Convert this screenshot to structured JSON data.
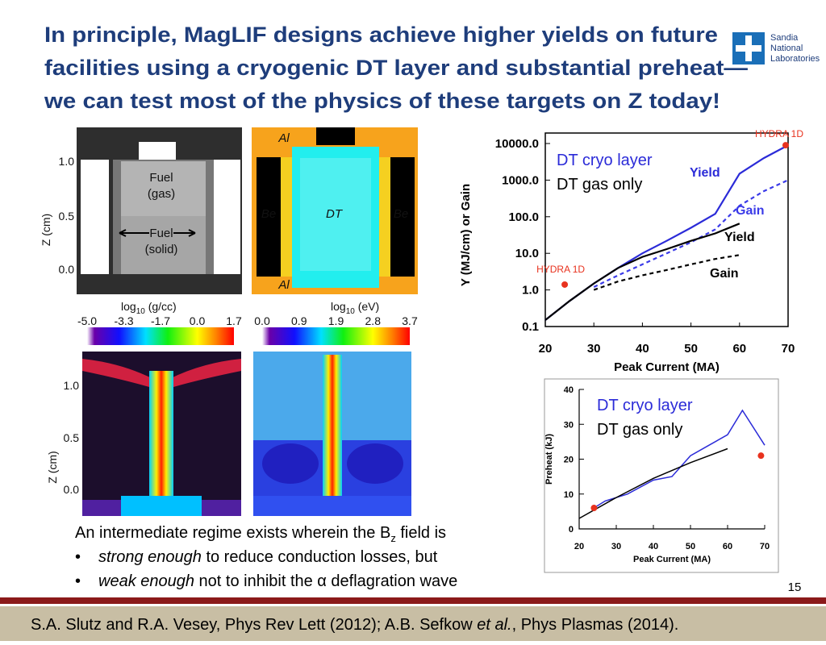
{
  "title": [
    "In principle, MagLIF designs achieve higher yields on future",
    "facilities using a cryogenic DT layer and substantial preheat—",
    "we can test most of the physics of these targets on Z today!"
  ],
  "logo": [
    "Sandia",
    "National",
    "Laboratories"
  ],
  "simulation": {
    "rows": [
      {
        "z_label": "Z (cm)",
        "z_ticks": [
          "1.0",
          "0.5",
          "0.0"
        ]
      },
      {
        "z_label": "Z (cm)",
        "z_ticks": [
          "1.0",
          "0.5",
          "0.0"
        ]
      }
    ],
    "density_labels": [
      "Fuel",
      "(gas)",
      "Fuel",
      "(solid)"
    ],
    "material_labels": [
      "Al",
      "Be",
      "DT",
      "Be",
      "Al"
    ],
    "scales": [
      {
        "title": [
          "log",
          "10",
          " (g/cc)"
        ],
        "ticks": [
          "-5.0",
          "-3.3",
          "-1.7",
          "0.0",
          "1.7"
        ]
      },
      {
        "title": [
          "log",
          "10",
          " (eV)"
        ],
        "ticks": [
          "0.0",
          "0.9",
          "1.9",
          "2.8",
          "3.7"
        ]
      }
    ]
  },
  "text": {
    "intro": [
      "An intermediate regime exists wherein the B",
      "z",
      " field is"
    ],
    "bullets": [
      {
        "emphasis": "strong enough",
        "rest": " to reduce conduction losses, but"
      },
      {
        "emphasis": "weak enough",
        "rest": " not to inhibit the α deflagration wave"
      }
    ]
  },
  "page_number": "15",
  "footer": [
    "S.A. Slutz and R.A. Vesey, Phys Rev Lett (2012); A.B. Sefkow ",
    "et al.",
    ", Phys Plasmas (2014)."
  ],
  "chart_data": [
    {
      "type": "line",
      "y_scale": "log",
      "xlabel": "Peak Current (MA)",
      "ylabel": "Y (MJ/cm) or Gain",
      "xlim": [
        20,
        70
      ],
      "xticks": [
        20,
        30,
        40,
        50,
        60,
        70
      ],
      "ylim": [
        0.1,
        10000
      ],
      "yticks": [
        0.1,
        {
          "value": 1,
          "label": "1.0"
        },
        {
          "value": 10,
          "label": "10.0"
        },
        {
          "value": 100,
          "label": "100.0"
        },
        {
          "value": 1000,
          "label": "1000.0"
        },
        {
          "value": 10000,
          "label": "10000.0"
        }
      ],
      "legend": [
        {
          "label": "DT cryo layer",
          "color": "#2b2bd8"
        },
        {
          "label": "DT gas only",
          "color": "#000000"
        }
      ],
      "x": [
        20,
        25,
        30,
        35,
        40,
        45,
        50,
        55,
        60,
        65,
        70
      ],
      "series": [
        {
          "name": "Yield",
          "color": "#2b2bd8",
          "dash": false,
          "values": [
            0.15,
            0.5,
            1.5,
            4,
            10,
            22,
            50,
            120,
            1500,
            4000,
            9000
          ]
        },
        {
          "name": "Gain",
          "color": "#3a3ae8",
          "dash": true,
          "values": [
            null,
            null,
            1.2,
            2.5,
            5,
            10,
            20,
            45,
            200,
            500,
            1000
          ]
        },
        {
          "name": "Yield",
          "color": "#000000",
          "dash": false,
          "values": [
            0.15,
            0.5,
            1.5,
            4,
            8,
            13,
            22,
            35,
            65,
            null,
            null
          ]
        },
        {
          "name": "Gain",
          "color": "#000000",
          "dash": true,
          "values": [
            null,
            null,
            1,
            1.7,
            2.5,
            3.5,
            5,
            7,
            9,
            null,
            null
          ]
        }
      ],
      "points": [
        {
          "label": "HYDRA 1D",
          "x": 24,
          "y": 1.4
        },
        {
          "label": "HYDRA 1D",
          "x": 69.5,
          "y": 9000
        }
      ],
      "point_color": "#e8321e"
    },
    {
      "type": "line",
      "y_scale": "linear",
      "xlabel": "Peak Current (MA)",
      "ylabel": "Preheat (kJ)",
      "xlim": [
        20,
        70
      ],
      "xticks": [
        20,
        30,
        40,
        50,
        60,
        70
      ],
      "ylim": [
        0,
        40
      ],
      "yticks": [
        0,
        10,
        20,
        30,
        40
      ],
      "series": [
        {
          "name": "DT cryo layer",
          "color": "#2b2bd8",
          "dash": false,
          "x": [
            24,
            27,
            33,
            40,
            45,
            50,
            55,
            60,
            64,
            70
          ],
          "values": [
            6,
            8,
            10,
            14,
            15,
            21,
            24,
            27,
            34,
            24
          ]
        },
        {
          "name": "DT gas only",
          "color": "#000000",
          "dash": false,
          "x": [
            20,
            30,
            40,
            50,
            60
          ],
          "values": [
            3,
            9,
            14.5,
            19,
            23
          ]
        }
      ],
      "points": [
        {
          "x": 24,
          "y": 6
        },
        {
          "x": 69,
          "y": 21
        }
      ],
      "point_color": "#e8321e"
    }
  ]
}
